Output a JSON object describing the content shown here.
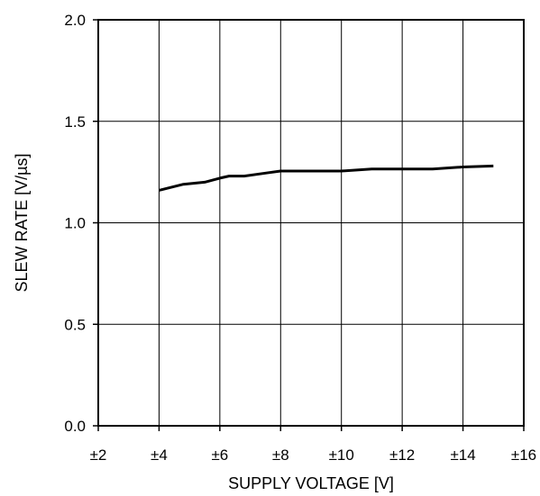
{
  "chart_data": {
    "type": "line",
    "title": "",
    "xlabel": "SUPPLY VOLTAGE [V]",
    "ylabel": "SLEW RATE [V/µs]",
    "xlim": [
      2,
      16
    ],
    "ylim": [
      0,
      2.0
    ],
    "x_ticks": [
      2,
      4,
      6,
      8,
      10,
      12,
      14,
      16
    ],
    "x_tick_labels": [
      "±2",
      "±4",
      "±6",
      "±8",
      "±10",
      "±12",
      "±14",
      "±16"
    ],
    "y_ticks": [
      0,
      0.5,
      1.0,
      1.5,
      2.0
    ],
    "y_tick_labels": [
      "0.0",
      "0.5",
      "1.0",
      "1.5",
      "2.0"
    ],
    "grid": true,
    "series": [
      {
        "x": [
          4,
          4.8,
          5.5,
          6,
          6.3,
          6.8,
          7.5,
          8,
          9,
          10,
          11,
          12,
          13,
          14,
          15
        ],
        "y": [
          1.16,
          1.19,
          1.2,
          1.22,
          1.23,
          1.23,
          1.245,
          1.255,
          1.255,
          1.255,
          1.265,
          1.265,
          1.265,
          1.275,
          1.28
        ],
        "color": "#000000"
      }
    ]
  }
}
